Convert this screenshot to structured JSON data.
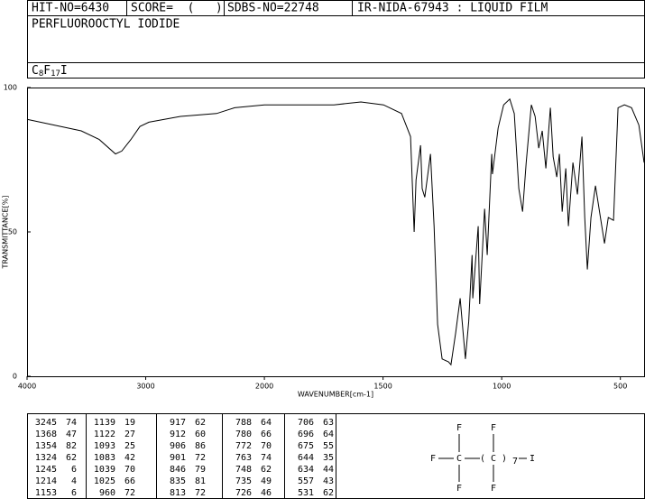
{
  "header": {
    "hit_no": "HIT-NO=6430",
    "score": "SCORE=  (   )",
    "sdbs_no": "SDBS-NO=22748",
    "ir": "IR-NIDA-67943 : LIQUID FILM"
  },
  "compound_name": "PERFLUOROOCTYL IODIDE",
  "formula_parts": [
    "C",
    "8",
    "F",
    "17",
    "I"
  ],
  "chart_data": {
    "type": "line",
    "xlabel": "WAVENUMBER[cm-1]",
    "ylabel": "TRANSMITTANCE[%]",
    "xlim": [
      4000,
      400
    ],
    "x_scale_break": 2000,
    "xticks": [
      4000,
      3000,
      2000,
      1500,
      1000,
      500
    ],
    "ylim": [
      0,
      100
    ],
    "yticks": [
      0,
      50,
      100
    ],
    "color": "#000000",
    "x": [
      4000,
      3772,
      3544,
      3392,
      3255,
      3202,
      3125,
      3049,
      2973,
      2707,
      2403,
      2251,
      2000,
      1821,
      1707,
      1593,
      1498,
      1422,
      1384,
      1369,
      1361,
      1342,
      1335,
      1324,
      1300,
      1285,
      1270,
      1251,
      1224,
      1214,
      1194,
      1175,
      1153,
      1139,
      1125,
      1122,
      1099,
      1093,
      1072,
      1061,
      1042,
      1039,
      1015,
      992,
      966,
      947,
      928,
      912,
      897,
      875,
      859,
      844,
      829,
      814,
      795,
      783,
      768,
      757,
      745,
      730,
      719,
      700,
      681,
      662,
      650,
      639,
      624,
      605,
      567,
      551,
      529,
      510,
      483,
      453,
      422,
      400
    ],
    "values": [
      89,
      87,
      85,
      82,
      77,
      78,
      82,
      86.5,
      88,
      90,
      91,
      93,
      94,
      94,
      94,
      95,
      94,
      91,
      83,
      50,
      68,
      80,
      65,
      62,
      77,
      52,
      18,
      6,
      5,
      4,
      15,
      27,
      6,
      19,
      42,
      27,
      52,
      25,
      58,
      42,
      77,
      70,
      86,
      94,
      96,
      91,
      65,
      57,
      74,
      94,
      90,
      79,
      85,
      72,
      93,
      76,
      69,
      77,
      57,
      72,
      52,
      74,
      63,
      83,
      55,
      37,
      55,
      66,
      46,
      55,
      54,
      93,
      94,
      93,
      87,
      74
    ]
  },
  "peak_table": [
    [
      [
        "3245",
        "74"
      ],
      [
        "1368",
        "47"
      ],
      [
        "1354",
        "82"
      ],
      [
        "1324",
        "62"
      ],
      [
        "1245",
        "6"
      ],
      [
        "1214",
        "4"
      ],
      [
        "1153",
        "6"
      ]
    ],
    [
      [
        "1139",
        "19"
      ],
      [
        "1122",
        "27"
      ],
      [
        "1093",
        "25"
      ],
      [
        "1083",
        "42"
      ],
      [
        "1039",
        "70"
      ],
      [
        "1025",
        "66"
      ],
      [
        "960",
        "72"
      ]
    ],
    [
      [
        "917",
        "62"
      ],
      [
        "912",
        "60"
      ],
      [
        "906",
        "86"
      ],
      [
        "901",
        "72"
      ],
      [
        "846",
        "79"
      ],
      [
        "835",
        "81"
      ],
      [
        "813",
        "72"
      ]
    ],
    [
      [
        "788",
        "64"
      ],
      [
        "780",
        "66"
      ],
      [
        "772",
        "70"
      ],
      [
        "763",
        "74"
      ],
      [
        "748",
        "62"
      ],
      [
        "735",
        "49"
      ],
      [
        "726",
        "46"
      ]
    ],
    [
      [
        "706",
        "63"
      ],
      [
        "696",
        "64"
      ],
      [
        "675",
        "55"
      ],
      [
        "644",
        "35"
      ],
      [
        "634",
        "44"
      ],
      [
        "557",
        "43"
      ],
      [
        "531",
        "62"
      ]
    ]
  ],
  "structure": {
    "top_left": "F",
    "top_right": "F",
    "left": "F",
    "c1": "C",
    "c2": "( C )",
    "sub": "7",
    "right": "I",
    "bottom_left": "F",
    "bottom_right": "F"
  }
}
